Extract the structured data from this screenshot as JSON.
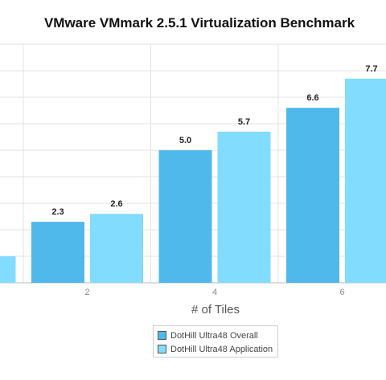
{
  "chart_data": {
    "type": "bar",
    "title": "VMware VMmark 2.5.1 Virtualization Benchmark",
    "xlabel": "# of Tiles",
    "ylabel": "",
    "categories": [
      "",
      "2",
      "4",
      "6"
    ],
    "series": [
      {
        "name": "DotHill Ultra48 Overall",
        "values": [
          null,
          2.3,
          5.0,
          6.6
        ],
        "labels": [
          "",
          "2.3",
          "5.0",
          "6.6"
        ]
      },
      {
        "name": "DotHill Ultra48 Application",
        "values": [
          1.0,
          2.6,
          5.7,
          7.7
        ],
        "labels": [
          "",
          "2.6",
          "5.7",
          "7.7"
        ]
      }
    ],
    "ylim": [
      0,
      9
    ],
    "ytick_step": 1,
    "grid": true,
    "legend_position": "bottom",
    "colors": {
      "series": [
        "#4fb9ec",
        "#82dcfd"
      ],
      "grid": "#e3e3e3",
      "axis": "#bbbbbb"
    }
  }
}
